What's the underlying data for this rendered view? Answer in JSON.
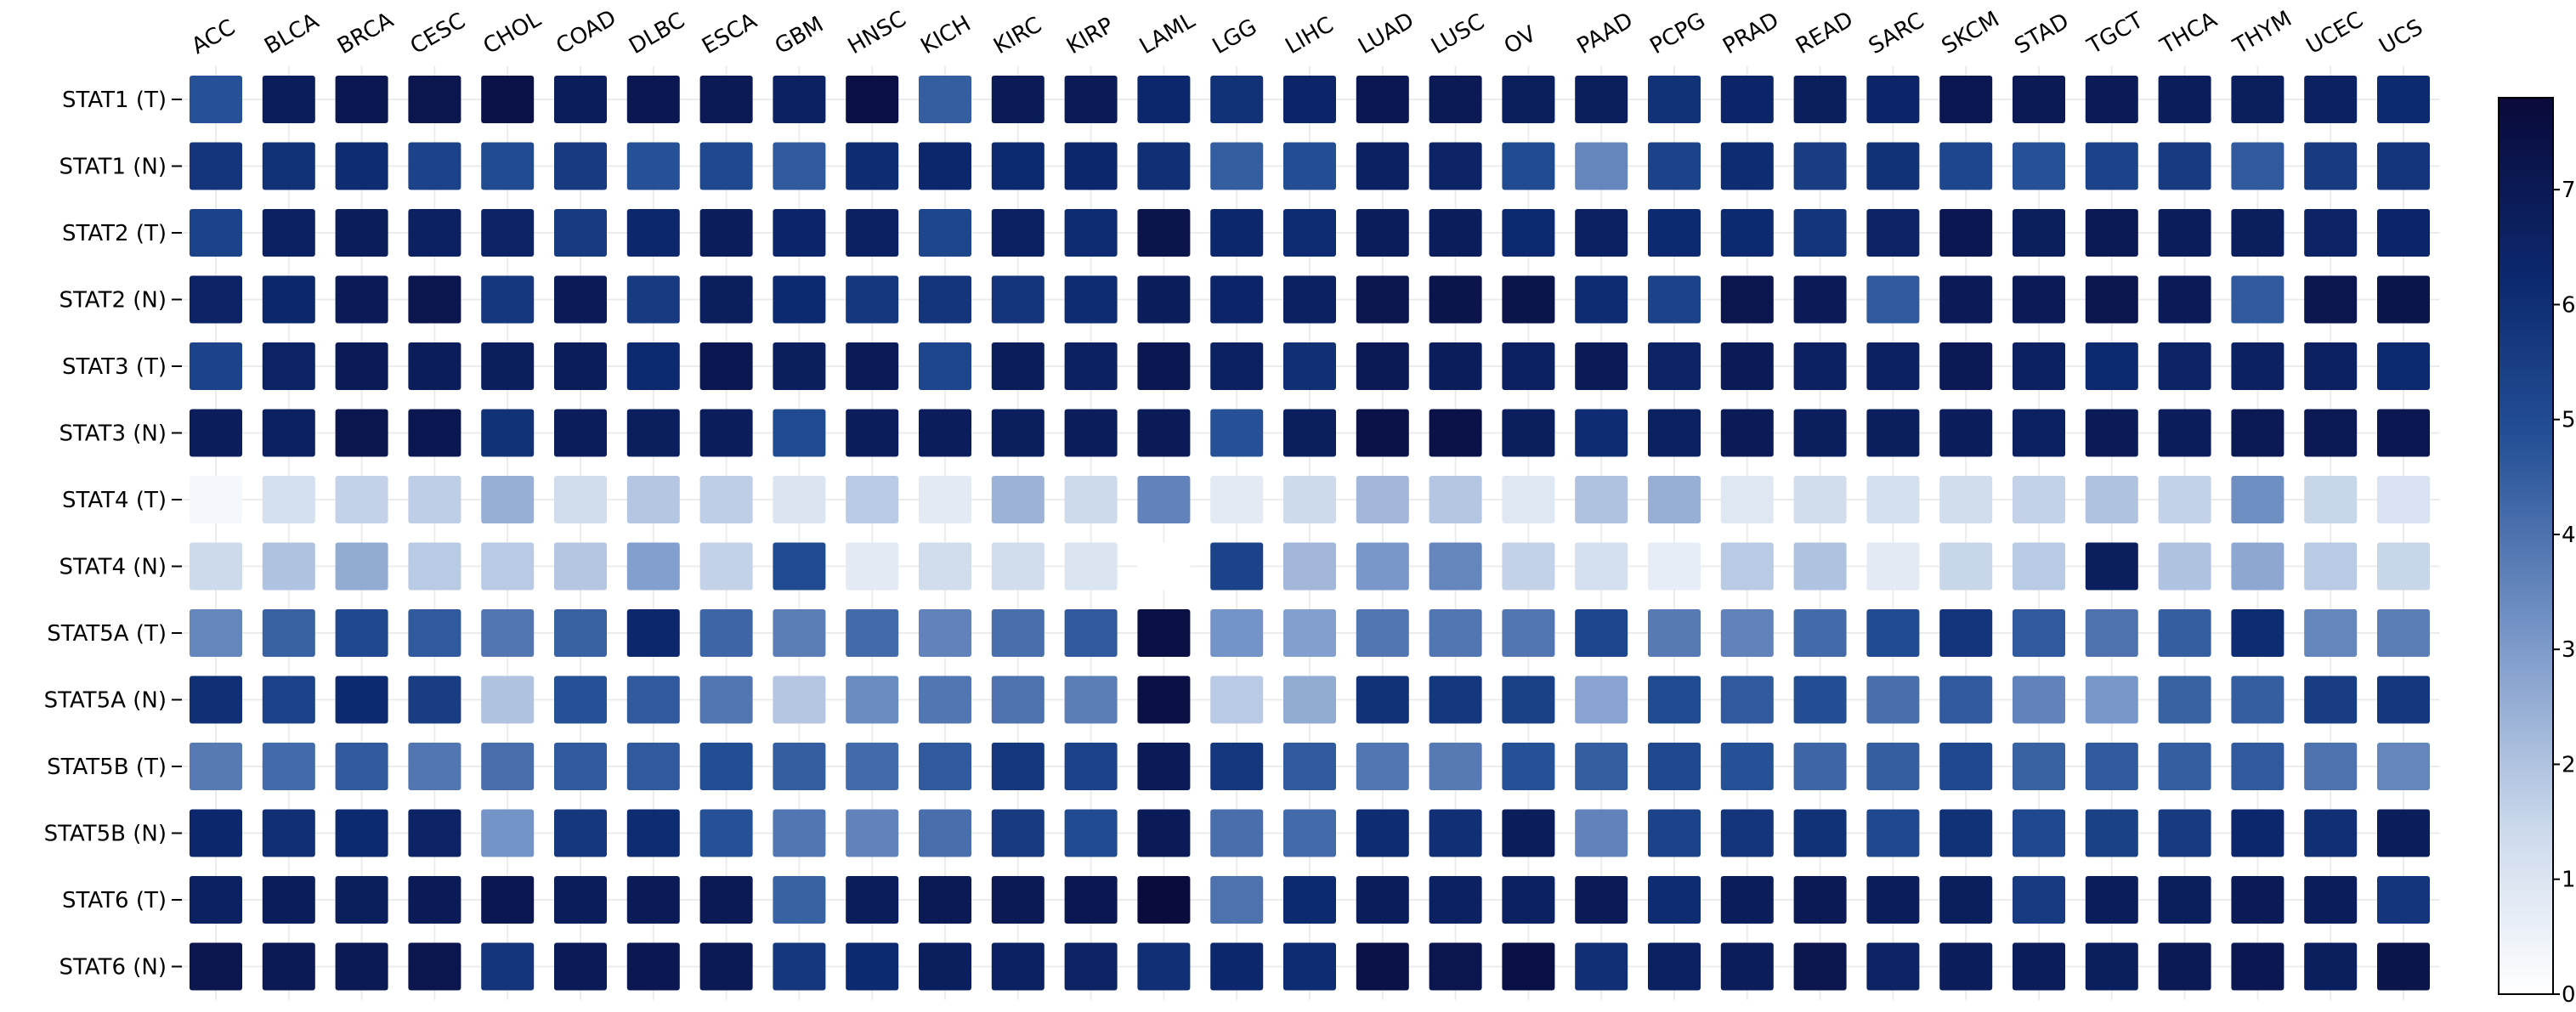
{
  "chart_data": {
    "type": "heatmap",
    "columns": [
      "ACC",
      "BLCA",
      "BRCA",
      "CESC",
      "CHOL",
      "COAD",
      "DLBC",
      "ESCA",
      "GBM",
      "HNSC",
      "KICH",
      "KIRC",
      "KIRP",
      "LAML",
      "LGG",
      "LIHC",
      "LUAD",
      "LUSC",
      "OV",
      "PAAD",
      "PCPG",
      "PRAD",
      "READ",
      "SARC",
      "SKCM",
      "STAD",
      "TGCT",
      "THCA",
      "THYM",
      "UCEC",
      "UCS"
    ],
    "rows": [
      "STAT1 (T)",
      "STAT1 (N)",
      "STAT2 (T)",
      "STAT2 (N)",
      "STAT3 (T)",
      "STAT3 (N)",
      "STAT4 (T)",
      "STAT4 (N)",
      "STAT5A (T)",
      "STAT5A (N)",
      "STAT5B (T)",
      "STAT5B (N)",
      "STAT6 (T)",
      "STAT6 (N)"
    ],
    "values": [
      [
        4.8,
        6.8,
        7.1,
        7.2,
        7.4,
        6.8,
        7.1,
        7.0,
        6.6,
        7.5,
        4.5,
        6.9,
        6.9,
        6.3,
        5.9,
        6.4,
        7.1,
        7.0,
        6.7,
        6.7,
        5.9,
        6.4,
        6.7,
        6.4,
        7.1,
        7.0,
        6.9,
        6.8,
        6.7,
        6.6,
        6.2
      ],
      [
        5.8,
        5.9,
        6.1,
        5.3,
        5.0,
        5.6,
        4.8,
        5.1,
        4.6,
        6.1,
        6.3,
        6.2,
        6.3,
        6.0,
        4.5,
        4.9,
        6.6,
        6.5,
        5.0,
        3.5,
        5.3,
        6.1,
        5.5,
        5.9,
        5.2,
        4.8,
        5.3,
        5.6,
        4.6,
        5.6,
        5.8
      ],
      [
        5.3,
        6.6,
        6.8,
        6.6,
        6.5,
        5.6,
        6.3,
        6.8,
        6.4,
        6.6,
        5.2,
        6.6,
        6.1,
        7.3,
        6.3,
        6.1,
        6.8,
        6.8,
        6.2,
        6.6,
        6.2,
        6.2,
        5.8,
        6.5,
        7.1,
        6.7,
        7.0,
        6.8,
        6.7,
        6.5,
        6.4
      ],
      [
        6.5,
        6.3,
        6.9,
        7.2,
        5.7,
        6.9,
        5.6,
        6.7,
        6.2,
        5.7,
        5.8,
        5.8,
        6.1,
        6.8,
        6.4,
        6.6,
        7.2,
        7.3,
        7.3,
        6.1,
        5.3,
        7.2,
        6.9,
        4.6,
        6.9,
        6.9,
        7.2,
        6.9,
        4.6,
        7.2,
        7.3
      ],
      [
        5.3,
        6.5,
        6.9,
        6.8,
        6.7,
        6.8,
        6.2,
        7.1,
        6.7,
        6.9,
        5.2,
        6.8,
        6.6,
        7.1,
        6.6,
        6.0,
        7.0,
        6.8,
        6.6,
        6.9,
        6.5,
        6.9,
        6.6,
        6.6,
        7.0,
        6.6,
        6.2,
        6.5,
        6.6,
        6.6,
        6.2
      ],
      [
        6.8,
        6.6,
        7.2,
        7.1,
        5.9,
        6.8,
        6.7,
        6.8,
        5.0,
        6.8,
        6.8,
        6.7,
        6.8,
        6.9,
        4.8,
        6.7,
        7.4,
        7.4,
        6.7,
        6.1,
        6.6,
        6.9,
        6.7,
        6.7,
        6.8,
        6.6,
        6.9,
        6.8,
        7.0,
        7.0,
        7.1
      ],
      [
        0.3,
        1.2,
        1.6,
        1.7,
        2.5,
        1.3,
        1.9,
        1.7,
        1.0,
        1.8,
        0.8,
        2.4,
        1.4,
        3.6,
        0.8,
        1.4,
        2.3,
        1.9,
        0.9,
        2.0,
        2.5,
        0.9,
        1.3,
        1.2,
        1.3,
        1.6,
        2.0,
        1.6,
        3.3,
        1.5,
        1.1
      ],
      [
        1.4,
        2.0,
        2.6,
        1.8,
        1.8,
        1.9,
        2.9,
        1.6,
        5.0,
        0.8,
        1.3,
        1.3,
        1.0,
        0.0,
        5.3,
        2.3,
        3.1,
        3.5,
        1.6,
        1.2,
        0.7,
        1.8,
        2.0,
        0.8,
        1.5,
        1.8,
        6.7,
        2.0,
        2.7,
        1.8,
        1.5
      ],
      [
        3.5,
        4.4,
        5.1,
        4.6,
        3.9,
        4.4,
        6.3,
        4.3,
        3.7,
        4.2,
        3.6,
        4.1,
        4.6,
        7.5,
        3.2,
        2.9,
        3.9,
        3.9,
        3.9,
        5.2,
        3.8,
        3.6,
        4.2,
        5.0,
        5.8,
        4.6,
        4.0,
        4.5,
        6.1,
        3.5,
        3.7
      ],
      [
        6.0,
        5.3,
        6.2,
        5.5,
        2.0,
        4.8,
        4.6,
        3.9,
        1.9,
        3.4,
        3.9,
        4.0,
        3.7,
        7.5,
        1.8,
        2.6,
        5.9,
        5.7,
        5.4,
        2.8,
        5.0,
        4.6,
        4.9,
        4.1,
        4.6,
        3.6,
        3.1,
        4.4,
        4.5,
        5.5,
        5.7
      ],
      [
        3.8,
        4.2,
        4.6,
        3.9,
        4.1,
        4.6,
        4.6,
        4.9,
        4.5,
        4.2,
        4.6,
        5.7,
        5.3,
        6.9,
        5.7,
        4.6,
        3.9,
        3.8,
        4.8,
        4.5,
        5.1,
        4.8,
        4.3,
        4.5,
        5.1,
        4.4,
        4.6,
        4.5,
        4.6,
        4.0,
        3.5
      ],
      [
        6.3,
        6.0,
        6.2,
        6.5,
        3.2,
        5.7,
        6.1,
        4.8,
        3.9,
        3.6,
        4.1,
        5.6,
        5.0,
        6.9,
        4.1,
        4.2,
        6.1,
        6.0,
        6.8,
        3.6,
        5.3,
        5.8,
        5.9,
        5.1,
        5.9,
        5.1,
        5.4,
        5.6,
        6.3,
        6.0,
        6.8
      ],
      [
        6.6,
        6.8,
        6.7,
        6.9,
        7.1,
        6.8,
        6.9,
        7.0,
        4.4,
        6.8,
        7.0,
        7.0,
        7.1,
        7.7,
        4.0,
        6.2,
        6.8,
        6.6,
        6.6,
        6.9,
        6.1,
        6.8,
        7.0,
        6.8,
        6.7,
        5.6,
        6.8,
        6.7,
        6.9,
        6.8,
        5.8
      ],
      [
        7.2,
        7.0,
        7.0,
        7.2,
        5.8,
        6.9,
        7.1,
        7.0,
        5.7,
        6.2,
        6.7,
        6.6,
        6.5,
        6.0,
        6.3,
        6.1,
        7.4,
        7.2,
        7.5,
        6.0,
        6.6,
        6.8,
        7.2,
        6.5,
        6.8,
        6.8,
        6.7,
        7.0,
        7.1,
        6.7,
        7.3
      ]
    ],
    "colorbar": {
      "min": 0,
      "max": 7.8,
      "ticks": [
        0,
        1,
        2,
        3,
        4,
        5,
        6,
        7
      ],
      "colors": [
        "#ffffff",
        "#0a0a3a"
      ]
    },
    "xlabel": "",
    "ylabel": "",
    "title": ""
  }
}
